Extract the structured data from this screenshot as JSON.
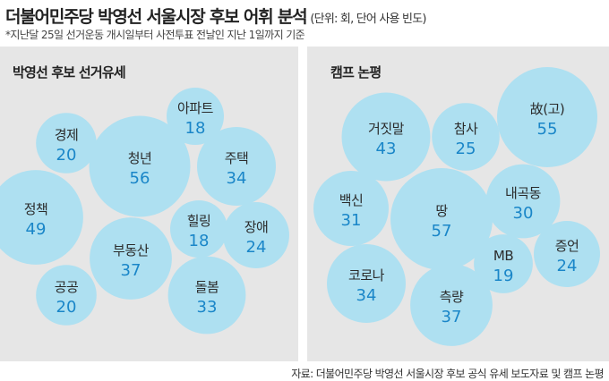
{
  "header": {
    "title": "더불어민주당 박영선 서울시장 후보 어휘 분석",
    "unit": "(단위: 회, 단어 사용 빈도)",
    "subtitle": "*지난달 25일 선거운동 개시일부터 사전투표 전날인 지난 1일까지 기준"
  },
  "footer": {
    "source": "자료: 더불어민주당 박영선 서울시장 후보 공식 유세 보도자료 및 캠프 논평"
  },
  "colors": {
    "bubble": "#aee0f1",
    "value": "#1a86c8",
    "panel": "#e6e6e6"
  },
  "chart_data": [
    {
      "type": "bubble",
      "title": "박영선 후보 선거유세",
      "items": [
        {
          "word": "아파트",
          "value": 18
        },
        {
          "word": "경제",
          "value": 20
        },
        {
          "word": "청년",
          "value": 56
        },
        {
          "word": "주택",
          "value": 34
        },
        {
          "word": "정책",
          "value": 49
        },
        {
          "word": "힐링",
          "value": 18
        },
        {
          "word": "장애",
          "value": 24
        },
        {
          "word": "부동산",
          "value": 37
        },
        {
          "word": "공공",
          "value": 20
        },
        {
          "word": "돌봄",
          "value": 33
        }
      ]
    },
    {
      "type": "bubble",
      "title": "캠프 논평",
      "items": [
        {
          "word": "故(고)",
          "value": 55
        },
        {
          "word": "거짓말",
          "value": 43
        },
        {
          "word": "참사",
          "value": 25
        },
        {
          "word": "백신",
          "value": 31
        },
        {
          "word": "땅",
          "value": 57
        },
        {
          "word": "내곡동",
          "value": 30
        },
        {
          "word": "MB",
          "value": 19
        },
        {
          "word": "증언",
          "value": 24
        },
        {
          "word": "코로나",
          "value": 34
        },
        {
          "word": "측량",
          "value": 37
        }
      ]
    }
  ]
}
